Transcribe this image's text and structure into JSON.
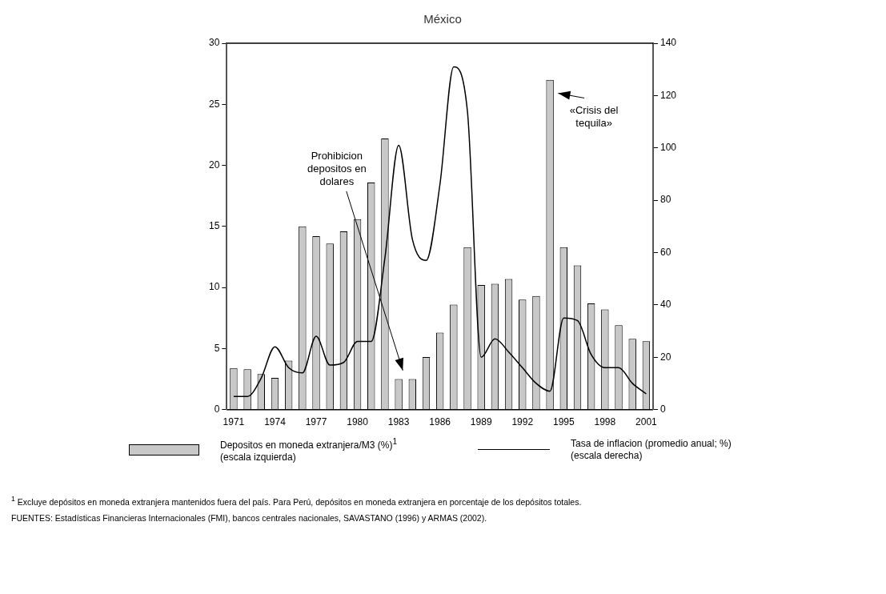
{
  "chart_data": {
    "type": "bar",
    "title": "México",
    "categories": [
      "1971",
      null,
      null,
      "1974",
      null,
      null,
      "1977",
      null,
      null,
      "1980",
      null,
      null,
      "1983",
      null,
      null,
      "1986",
      null,
      null,
      "1989",
      null,
      null,
      "1992",
      null,
      null,
      "1995",
      null,
      null,
      "1998",
      null,
      null,
      "2001"
    ],
    "series": [
      {
        "name": "Depositos en moneda extranjera/M3 (%)$^{1}$ (escala izquierda)",
        "color": "#c8c8c8",
        "values": [
          3.4,
          3.3,
          2.9,
          2.6,
          4.0,
          15.0,
          14.2,
          13.6,
          14.6,
          15.6,
          18.6,
          22.2,
          2.5,
          2.5,
          4.3,
          6.3,
          8.6,
          13.3,
          10.2,
          10.3,
          10.7,
          9.0,
          9.3,
          27.0,
          13.3,
          11.8,
          8.7,
          8.2,
          6.9,
          5.8,
          5.6
        ]
      },
      {
        "name": "Tasa de inflacion (promedio anual; %) (escala derecha)",
        "type": "line",
        "axis": "y2",
        "color": "#000000",
        "values": [
          5,
          5,
          12,
          24,
          16,
          14,
          28,
          17,
          18,
          26,
          26,
          58,
          101,
          65,
          57,
          86,
          131,
          114,
          20,
          27,
          22,
          16,
          10,
          7,
          35,
          34,
          21,
          16,
          16,
          10,
          6
        ]
      }
    ],
    "ylim": [
      0,
      30
    ],
    "yticks": [
      0,
      5,
      10,
      15,
      20,
      25,
      30
    ],
    "y2lim": [
      0,
      140
    ],
    "y2ticks": [
      0,
      20,
      40,
      60,
      80,
      100,
      120,
      140
    ],
    "grid": false,
    "legend": "bottom",
    "marker": "none",
    "line_style": "solid",
    "annotations": [
      "Prohibicion depositos en dolares",
      "«Crisis del tequila»",
      "$^{1}$ Excluye depósitos en moneda extranjera mantenidos fuera del país. Para Perú, depósitos en moneda extranjera en porcentaje de los depósitos totales.",
      "FUENTES: Estadísticas Financieras Internacionales (FMI), bancos centrales nacionales, SAVASTANO (1996) y ARMAS (2002)."
    ]
  }
}
